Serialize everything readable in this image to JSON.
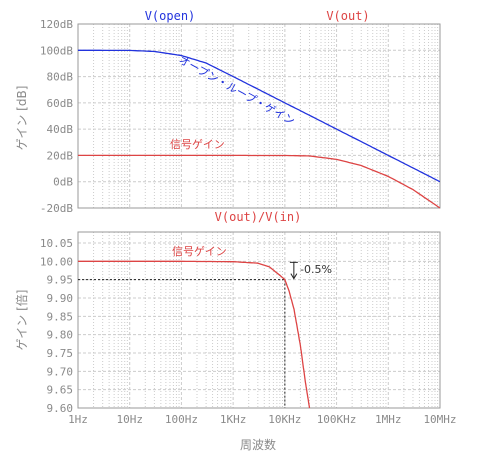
{
  "colors": {
    "blue": "#2233dd",
    "red": "#dd4444",
    "grid": "#cccccc",
    "axis": "#9a9a9a",
    "text": "#8a8a8a"
  },
  "chart_data": [
    {
      "type": "line",
      "x_scale": "log",
      "xlim": [
        1,
        10000000
      ],
      "ylim": [
        -20,
        120
      ],
      "y_ticks": [
        "120dB",
        "100dB",
        "80dB",
        "60dB",
        "40dB",
        "20dB",
        "0dB",
        "-20dB"
      ],
      "ylabel": "ゲイン [dB]",
      "titles": [
        "V(open)",
        "V(out)"
      ],
      "annotations": [
        "オープン・ループ・ゲイン",
        "信号ゲイン"
      ],
      "grid": true,
      "series": [
        {
          "name": "V(open)",
          "color": "#2233dd",
          "x": [
            1,
            10,
            30,
            100,
            300,
            1000,
            3000,
            10000,
            30000,
            100000,
            300000,
            1000000,
            3000000,
            10000000
          ],
          "y": [
            100,
            99.9,
            99.1,
            96,
            90.3,
            80,
            70.5,
            60,
            50.5,
            40,
            30.5,
            20,
            10.5,
            0
          ]
        },
        {
          "name": "V(out)",
          "color": "#dd4444",
          "x": [
            1,
            10,
            100,
            1000,
            10000,
            30000,
            100000,
            300000,
            1000000,
            3000000,
            10000000
          ],
          "y": [
            20,
            20,
            20,
            20,
            19.95,
            19.6,
            17,
            12.3,
            4,
            -6,
            -20
          ]
        }
      ]
    },
    {
      "type": "line",
      "x_scale": "log",
      "xlim": [
        1,
        10000000
      ],
      "ylim": [
        9.6,
        10.08
      ],
      "y_ticks": [
        "10.05",
        "10.00",
        "9.95",
        "9.90",
        "9.85",
        "9.80",
        "9.75",
        "9.70",
        "9.65",
        "9.60"
      ],
      "x_ticks": [
        "1Hz",
        "10Hz",
        "100Hz",
        "1KHz",
        "10KHz",
        "100KHz",
        "1MHz",
        "10MHz"
      ],
      "xlabel": "周波数",
      "ylabel": "ゲイン [倍]",
      "title": "V(out)/V(in)",
      "annotations": [
        "信号ゲイン",
        "-0.5%"
      ],
      "grid": true,
      "marker": {
        "x": 10000,
        "y": 9.95
      },
      "series": [
        {
          "name": "V(out)/V(in)",
          "color": "#dd4444",
          "x": [
            1,
            100,
            1000,
            3000,
            5000,
            8000,
            10000,
            12000,
            15000,
            20000,
            25000,
            30000
          ],
          "y": [
            10.0,
            10.0,
            9.999,
            9.995,
            9.985,
            9.962,
            9.95,
            9.92,
            9.87,
            9.77,
            9.67,
            9.6
          ]
        }
      ]
    }
  ]
}
